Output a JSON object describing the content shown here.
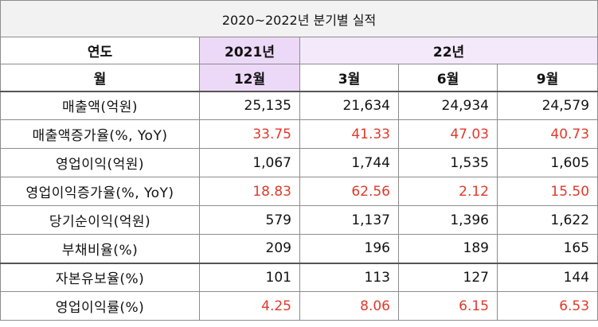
{
  "title": "2020~2022년 분기별 실적",
  "header": {
    "col_label_1": "연도",
    "year_2021": "2021년",
    "year_2022": "22년",
    "col_label_2": "월",
    "months": [
      "12월",
      "3월",
      "6월",
      "9월"
    ]
  },
  "rows": [
    {
      "label": "매출액(억원)",
      "values": [
        "25,135",
        "21,634",
        "24,934",
        "24,579"
      ],
      "red": false
    },
    {
      "label": "매출액증가율(%, YoY)",
      "values": [
        "33.75",
        "41.33",
        "47.03",
        "40.73"
      ],
      "red": true
    },
    {
      "label": "영업이익(억원)",
      "values": [
        "1,067",
        "1,744",
        "1,535",
        "1,605"
      ],
      "red": false
    },
    {
      "label": "영업이익증가율(%, YoY)",
      "values": [
        "18.83",
        "62.56",
        "2.12",
        "15.50"
      ],
      "red": true
    },
    {
      "label": "당기순이익(억원)",
      "values": [
        "579",
        "1,137",
        "1,396",
        "1,622"
      ],
      "red": false
    },
    {
      "label": "부채비율(%)",
      "values": [
        "209",
        "196",
        "189",
        "165"
      ],
      "red": false
    },
    {
      "label": "자본유보율(%)",
      "values": [
        "101",
        "113",
        "127",
        "144"
      ],
      "red": false
    },
    {
      "label": "영업이익률(%)",
      "values": [
        "4.25",
        "8.06",
        "6.15",
        "6.53"
      ],
      "red": true
    }
  ],
  "colors": {
    "header_purple": "#ecd9f7",
    "header_light": "#f4e9fb",
    "title_bg": "#f2f2f2",
    "red_text": "#e0392b"
  }
}
